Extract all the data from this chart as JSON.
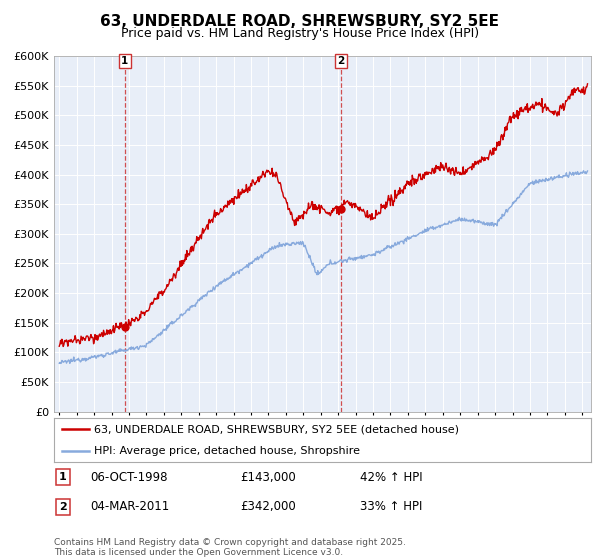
{
  "title": "63, UNDERDALE ROAD, SHREWSBURY, SY2 5EE",
  "subtitle": "Price paid vs. HM Land Registry's House Price Index (HPI)",
  "legend_label_red": "63, UNDERDALE ROAD, SHREWSBURY, SY2 5EE (detached house)",
  "legend_label_blue": "HPI: Average price, detached house, Shropshire",
  "marker1_date": "06-OCT-1998",
  "marker1_price": "£143,000",
  "marker1_hpi": "42% ↑ HPI",
  "marker2_date": "04-MAR-2011",
  "marker2_price": "£342,000",
  "marker2_hpi": "33% ↑ HPI",
  "footer": "Contains HM Land Registry data © Crown copyright and database right 2025.\nThis data is licensed under the Open Government Licence v3.0.",
  "red_color": "#cc0000",
  "blue_color": "#88aadd",
  "marker_line_color": "#cc3333",
  "background_color": "#ffffff",
  "chart_bg_color": "#e8eef8",
  "grid_color": "#ffffff",
  "ylim": [
    0,
    600000
  ],
  "yticks": [
    0,
    50000,
    100000,
    150000,
    200000,
    250000,
    300000,
    350000,
    400000,
    450000,
    500000,
    550000,
    600000
  ],
  "xlim_start": 1994.7,
  "xlim_end": 2025.5,
  "marker1_x": 1998.75,
  "marker2_x": 2011.17,
  "marker1_dot_y": 143000,
  "marker2_dot_y": 342000
}
